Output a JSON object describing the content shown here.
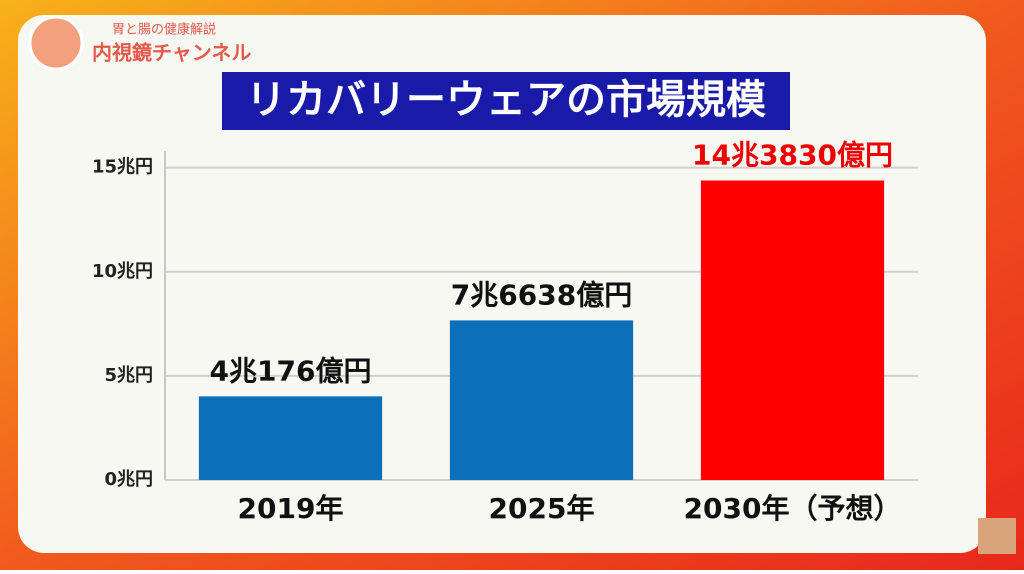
{
  "header": {
    "subtitle": "胃と腸の健康解説",
    "channel": "内視鏡チャンネル"
  },
  "chart_data": {
    "type": "bar",
    "title": "リカバリーウェアの市場規模",
    "categories": [
      "2019年",
      "2025年",
      "2030年（予想）"
    ],
    "values": [
      4.0176,
      7.6638,
      14.383
    ],
    "value_labels": [
      "4兆176億円",
      "7兆6638億円",
      "14兆3830億円"
    ],
    "colors": [
      "#0b6fba",
      "#0b6fba",
      "#ff0000"
    ],
    "label_colors": [
      "#111111",
      "#111111",
      "#ee0000"
    ],
    "ylim": [
      0,
      15.8
    ],
    "yticks": [
      {
        "value": 0,
        "label": "0兆円"
      },
      {
        "value": 5,
        "label": "5兆円"
      },
      {
        "value": 10,
        "label": "10兆円"
      },
      {
        "value": 15,
        "label": "15兆円"
      }
    ],
    "grid": true
  }
}
